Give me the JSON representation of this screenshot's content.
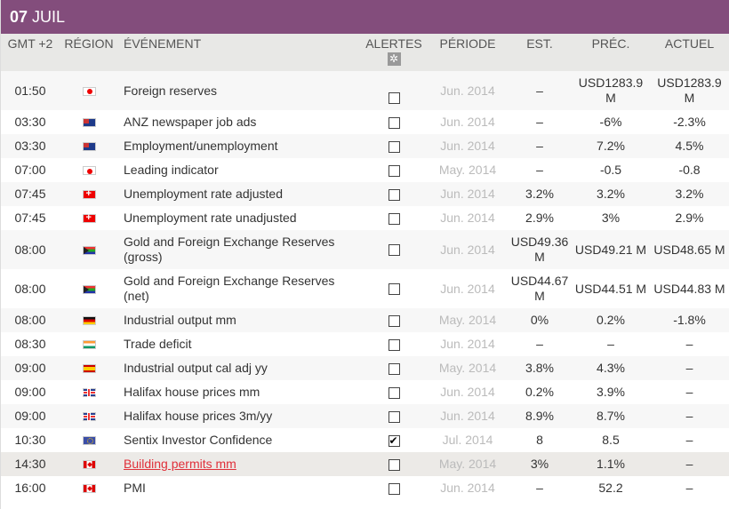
{
  "header": {
    "day": "07",
    "month": "JUIL"
  },
  "columns": {
    "time": "GMT +2",
    "region": "RÉGION",
    "event": "ÉVÉNEMENT",
    "alerts": "ALERTES",
    "period": "PÉRIODE",
    "est": "EST.",
    "prev": "PRÉC.",
    "actual": "ACTUEL"
  },
  "alerts_settings_icon": "gear-icon",
  "rows": [
    {
      "time": "01:50",
      "flag": "jp",
      "event": "Foreign reserves",
      "alert": false,
      "period": "Jun. 2014",
      "est": "–",
      "prev": "USD1283.9 M",
      "actual": "USD1283.9 M"
    },
    {
      "time": "03:30",
      "flag": "au",
      "event": "ANZ newspaper job ads",
      "alert": false,
      "period": "Jun. 2014",
      "est": "–",
      "prev": "-6%",
      "actual": "-2.3%"
    },
    {
      "time": "03:30",
      "flag": "au",
      "event": "Employment/unemployment",
      "alert": false,
      "period": "Jun. 2014",
      "est": "–",
      "prev": "7.2%",
      "actual": "4.5%"
    },
    {
      "time": "07:00",
      "flag": "jp",
      "event": "Leading indicator",
      "alert": false,
      "period": "May. 2014",
      "est": "–",
      "prev": "-0.5",
      "actual": "-0.8"
    },
    {
      "time": "07:45",
      "flag": "ch",
      "event": "Unemployment rate adjusted",
      "alert": false,
      "period": "Jun. 2014",
      "est": "3.2%",
      "prev": "3.2%",
      "actual": "3.2%"
    },
    {
      "time": "07:45",
      "flag": "ch",
      "event": "Unemployment rate unadjusted",
      "alert": false,
      "period": "Jun. 2014",
      "est": "2.9%",
      "prev": "3%",
      "actual": "2.9%"
    },
    {
      "time": "08:00",
      "flag": "za",
      "event": "Gold and Foreign Exchange Reserves (gross)",
      "alert": false,
      "period": "Jun. 2014",
      "est": "USD49.36 M",
      "prev": "USD49.21 M",
      "actual": "USD48.65 M"
    },
    {
      "time": "08:00",
      "flag": "za",
      "event": "Gold and Foreign Exchange Reserves (net)",
      "alert": false,
      "period": "Jun. 2014",
      "est": "USD44.67 M",
      "prev": "USD44.51 M",
      "actual": "USD44.83 M"
    },
    {
      "time": "08:00",
      "flag": "de",
      "event": "Industrial output mm",
      "alert": false,
      "period": "May. 2014",
      "est": "0%",
      "prev": "0.2%",
      "actual": "-1.8%"
    },
    {
      "time": "08:30",
      "flag": "in",
      "event": "Trade deficit",
      "alert": false,
      "period": "Jun. 2014",
      "est": "–",
      "prev": "–",
      "actual": "–"
    },
    {
      "time": "09:00",
      "flag": "es",
      "event": "Industrial output cal adj yy",
      "alert": false,
      "period": "May. 2014",
      "est": "3.8%",
      "prev": "4.3%",
      "actual": "–"
    },
    {
      "time": "09:00",
      "flag": "gb",
      "event": "Halifax house prices mm",
      "alert": false,
      "period": "Jun. 2014",
      "est": "0.2%",
      "prev": "3.9%",
      "actual": "–"
    },
    {
      "time": "09:00",
      "flag": "gb",
      "event": "Halifax house prices 3m/yy",
      "alert": false,
      "period": "Jun. 2014",
      "est": "8.9%",
      "prev": "8.7%",
      "actual": "–"
    },
    {
      "time": "10:30",
      "flag": "eu",
      "event": "Sentix Investor Confidence",
      "alert": true,
      "period": "Jul. 2014",
      "est": "8",
      "prev": "8.5",
      "actual": "–"
    },
    {
      "time": "14:30",
      "flag": "ca",
      "event": "Building permits mm",
      "alert": false,
      "period": "May. 2014",
      "est": "3%",
      "prev": "1.1%",
      "actual": "–",
      "hovered": true
    },
    {
      "time": "16:00",
      "flag": "ca",
      "event": "PMI",
      "alert": false,
      "period": "Jun. 2014",
      "est": "–",
      "prev": "52.2",
      "actual": "–"
    }
  ],
  "colors": {
    "header_bg": "#834d7c",
    "link_hover": "#e0303a"
  }
}
